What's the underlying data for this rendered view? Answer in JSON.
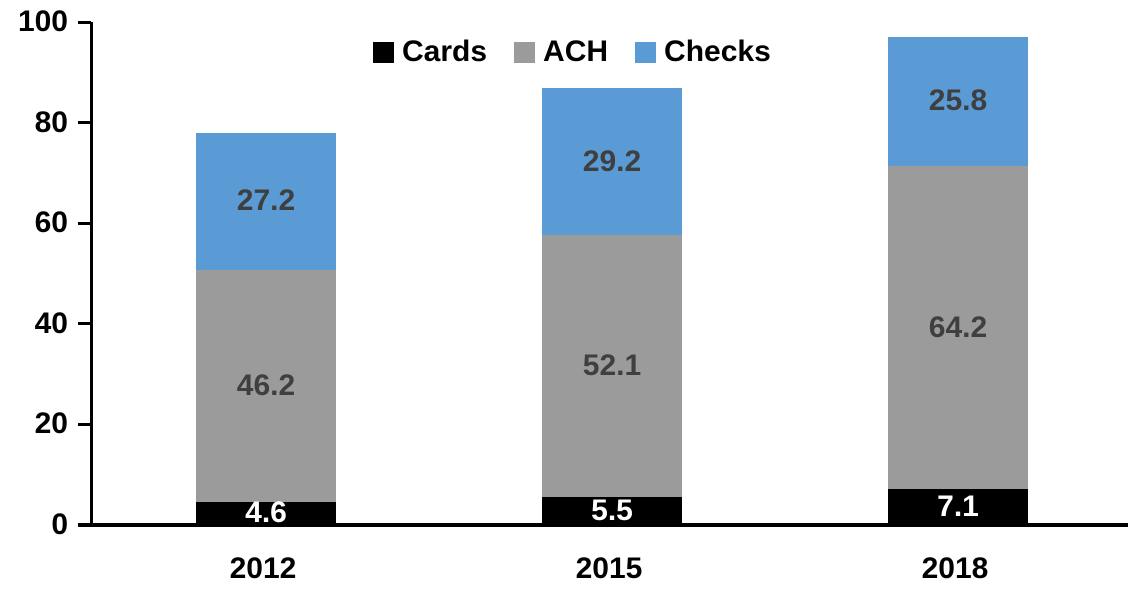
{
  "chart_data": {
    "type": "bar",
    "stacked": true,
    "title": "",
    "categories": [
      "2012",
      "2015",
      "2018"
    ],
    "series": [
      {
        "name": "Cards",
        "color": "#000000",
        "label_color": "#FFFFFF",
        "values": [
          4.6,
          5.5,
          7.1
        ]
      },
      {
        "name": "ACH",
        "color": "#9B9B9B",
        "label_color": "#3F3F3F",
        "values": [
          46.2,
          52.1,
          64.2
        ]
      },
      {
        "name": "Checks",
        "color": "#5B9BD5",
        "label_color": "#3F3F3F",
        "values": [
          27.2,
          29.2,
          25.8
        ]
      }
    ],
    "totals": [
      78.0,
      86.8,
      97.1
    ],
    "ylim": [
      0,
      100
    ],
    "yticks": [
      0,
      20,
      40,
      60,
      80,
      100
    ],
    "data_labels": true,
    "label_decimals": 1,
    "grid": false,
    "legend": {
      "position": "top",
      "entries": [
        "Cards",
        "ACH",
        "Checks"
      ]
    },
    "axis_color": "#000000"
  }
}
